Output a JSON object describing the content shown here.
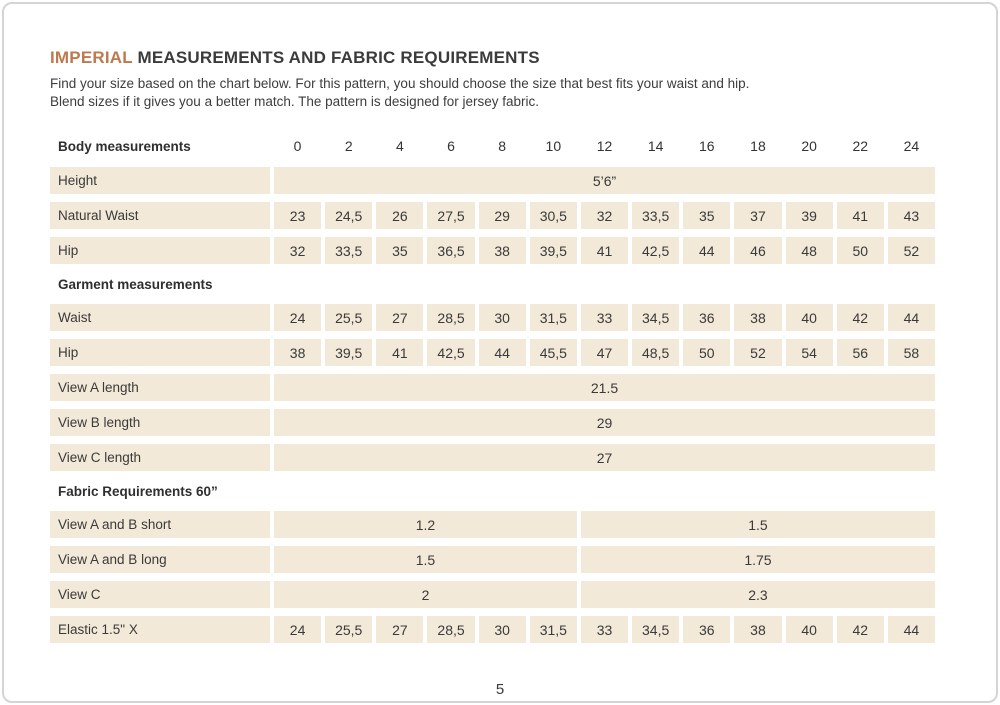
{
  "page": {
    "title_accent": "IMPERIAL",
    "title_rest": " MEASUREMENTS AND FABRIC REQUIREMENTS",
    "intro_line1": "Find your size based on the chart below. For this pattern, you should choose the size that best fits your waist and hip.",
    "intro_line2": "Blend sizes if it gives you a better match.  The pattern is designed for jersey fabric.",
    "page_number": "5",
    "accent_color": "#bc7a4e",
    "cell_color": "#f2e9d8"
  },
  "table": {
    "rows": [
      {
        "kind": "header",
        "label": "Body measurements",
        "sizes": [
          "0",
          "2",
          "4",
          "6",
          "8",
          "10",
          "12",
          "14",
          "16",
          "18",
          "20",
          "22",
          "24"
        ]
      },
      {
        "kind": "fullspan",
        "label": "Height",
        "value": "5’6”"
      },
      {
        "kind": "values",
        "label": "Natural Waist",
        "values": [
          "23",
          "24,5",
          "26",
          "27,5",
          "29",
          "30,5",
          "32",
          "33,5",
          "35",
          "37",
          "39",
          "41",
          "43"
        ]
      },
      {
        "kind": "values",
        "label": "Hip",
        "values": [
          "32",
          "33,5",
          "35",
          "36,5",
          "38",
          "39,5",
          "41",
          "42,5",
          "44",
          "46",
          "48",
          "50",
          "52"
        ]
      },
      {
        "kind": "section",
        "label": "Garment measurements"
      },
      {
        "kind": "values",
        "label": "Waist",
        "values": [
          "24",
          "25,5",
          "27",
          "28,5",
          "30",
          "31,5",
          "33",
          "34,5",
          "36",
          "38",
          "40",
          "42",
          "44"
        ]
      },
      {
        "kind": "values",
        "label": "Hip",
        "values": [
          "38",
          "39,5",
          "41",
          "42,5",
          "44",
          "45,5",
          "47",
          "48,5",
          "50",
          "52",
          "54",
          "56",
          "58"
        ]
      },
      {
        "kind": "fullspan",
        "label": "View A length",
        "value": "21.5"
      },
      {
        "kind": "fullspan",
        "label": "View B length",
        "value": "29"
      },
      {
        "kind": "fullspan",
        "label": "View C length",
        "value": "27"
      },
      {
        "kind": "section",
        "label": "Fabric Requirements  60”"
      },
      {
        "kind": "split",
        "label": "View A and B  short",
        "left": "1.2",
        "right": "1.5"
      },
      {
        "kind": "split",
        "label": "View A and B long",
        "left": "1.5",
        "right": "1.75"
      },
      {
        "kind": "split",
        "label": "View C",
        "left": "2",
        "right": "2.3"
      },
      {
        "kind": "values",
        "label": "Elastic 1.5\" X",
        "values": [
          "24",
          "25,5",
          "27",
          "28,5",
          "30",
          "31,5",
          "33",
          "34,5",
          "36",
          "38",
          "40",
          "42",
          "44"
        ]
      }
    ]
  }
}
